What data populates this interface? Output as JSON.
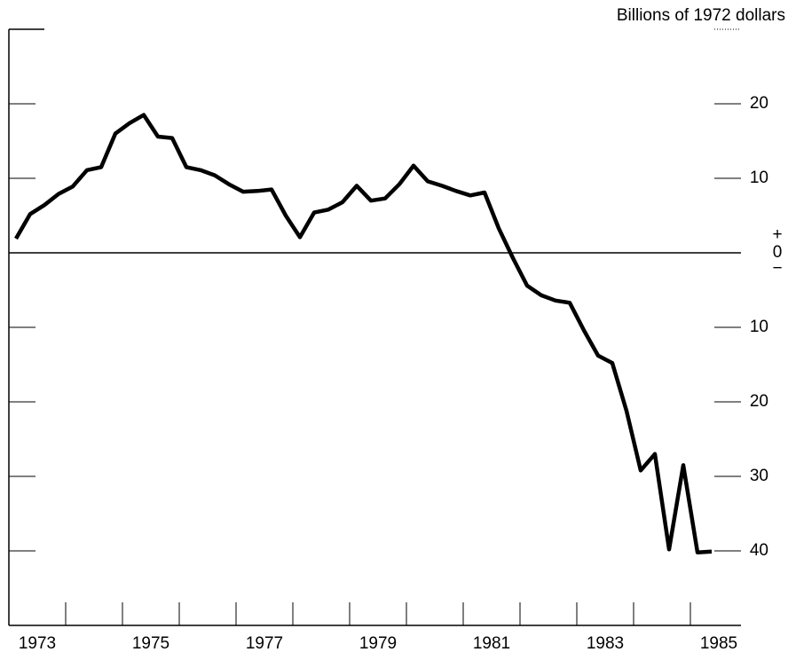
{
  "chart_data": {
    "type": "line",
    "title": "Billions of 1972 dollars",
    "x": [
      1973.125,
      1973.375,
      1973.625,
      1973.875,
      1974.125,
      1974.375,
      1974.625,
      1974.875,
      1975.125,
      1975.375,
      1975.625,
      1975.875,
      1976.125,
      1976.375,
      1976.625,
      1976.875,
      1977.125,
      1977.375,
      1977.625,
      1977.875,
      1978.125,
      1978.375,
      1978.625,
      1978.875,
      1979.125,
      1979.375,
      1979.625,
      1979.875,
      1980.125,
      1980.375,
      1980.625,
      1980.875,
      1981.125,
      1981.375,
      1981.625,
      1981.875,
      1982.125,
      1982.375,
      1982.625,
      1982.875,
      1983.125,
      1983.375,
      1983.625,
      1983.875,
      1984.125,
      1984.375,
      1984.625,
      1984.875,
      1985.125,
      1985.375
    ],
    "series": [
      {
        "color": "#000000",
        "values": [
          1.9,
          5.2,
          6.4,
          7.9,
          8.9,
          11.1,
          11.5,
          16.0,
          17.4,
          18.5,
          15.6,
          15.4,
          11.5,
          11.1,
          10.4,
          9.2,
          8.2,
          8.3,
          8.5,
          5.0,
          2.1,
          5.4,
          5.8,
          6.8,
          9.0,
          7.0,
          7.3,
          9.2,
          11.7,
          9.6,
          9.0,
          8.3,
          7.7,
          8.1,
          3.3,
          -0.7,
          -4.4,
          -5.7,
          -6.4,
          -6.7,
          -10.4,
          -13.8,
          -14.8,
          -21.2,
          -29.2,
          -27.0,
          -39.8,
          -28.5,
          -40.2,
          -40.1
        ]
      }
    ],
    "xlim": [
      1973,
      1986
    ],
    "xticks": [
      1974,
      1975,
      1976,
      1977,
      1978,
      1979,
      1980,
      1981,
      1982,
      1983,
      1984,
      1985
    ],
    "xlabels": [
      {
        "value": 1973.5,
        "label": "1973"
      },
      {
        "value": 1975.5,
        "label": "1975"
      },
      {
        "value": 1977.5,
        "label": "1977"
      },
      {
        "value": 1979.5,
        "label": "1979"
      },
      {
        "value": 1981.5,
        "label": "1981"
      },
      {
        "value": 1983.5,
        "label": "1983"
      },
      {
        "value": 1985.5,
        "label": "1985"
      }
    ],
    "ylim": [
      -50,
      30
    ],
    "yticks": [
      20,
      10,
      0,
      {
        "value": -10,
        "label": "10"
      },
      {
        "value": -20,
        "label": "20"
      },
      {
        "value": -30,
        "label": "30"
      },
      {
        "value": -40,
        "label": "40"
      }
    ],
    "zero_signs": [
      "+",
      "−"
    ]
  }
}
